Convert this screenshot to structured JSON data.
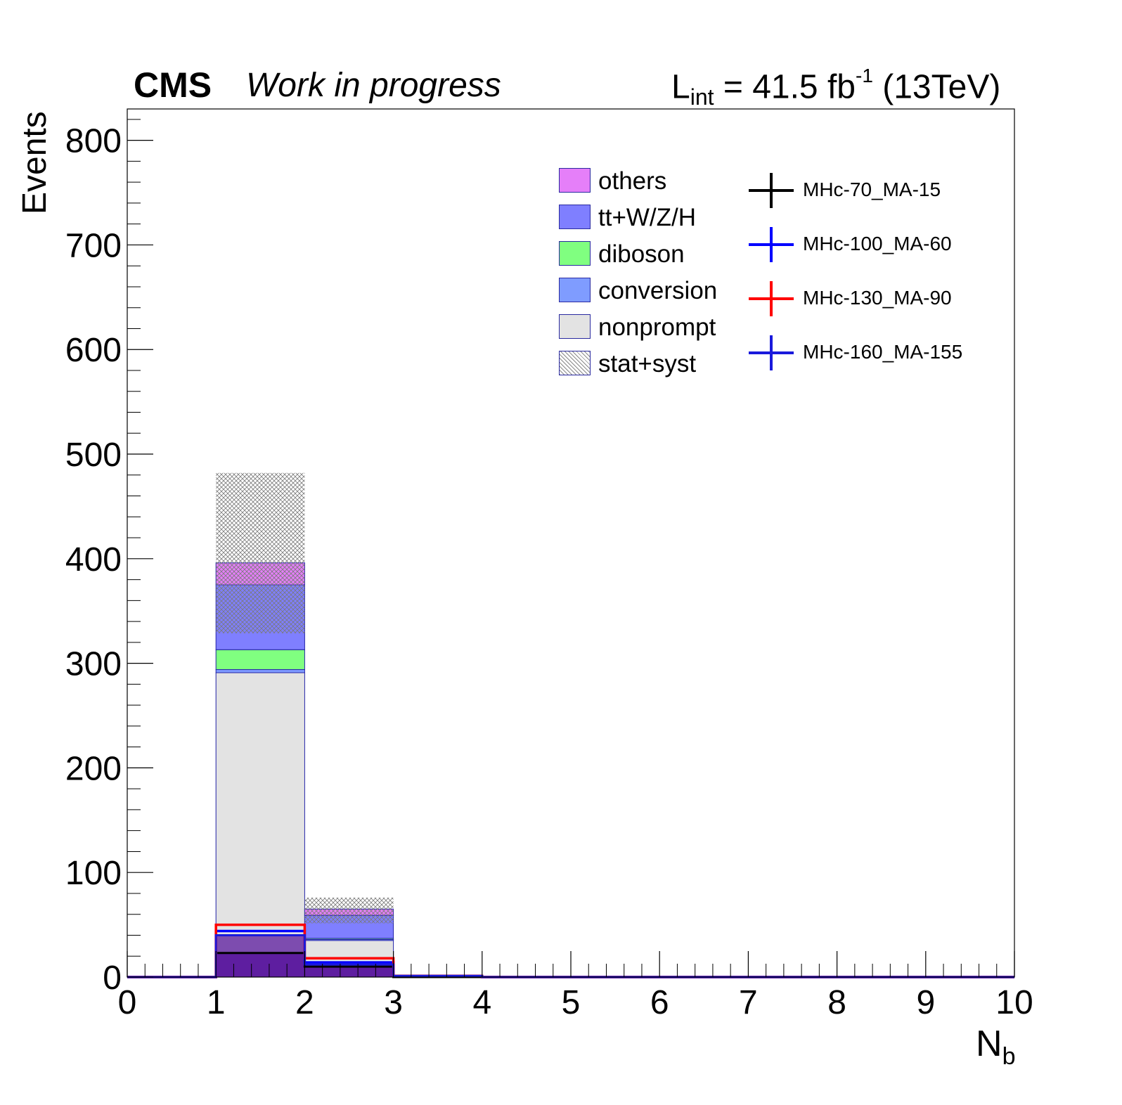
{
  "header": {
    "experiment": "CMS",
    "status": "Work in progress",
    "lumi_prefix": "L",
    "lumi_sub": "int",
    "lumi_value": " = 41.5 fb",
    "lumi_sup": "-1",
    "lumi_energy": " (13TeV)"
  },
  "chart_data": {
    "type": "bar",
    "subtype": "stacked-histogram",
    "xlabel_main": "N",
    "xlabel_sub": "b",
    "ylabel": "Events",
    "xlim": [
      0,
      10
    ],
    "ylim": [
      0,
      830
    ],
    "x_ticks": [
      "0",
      "1",
      "2",
      "3",
      "4",
      "5",
      "6",
      "7",
      "8",
      "9",
      "10"
    ],
    "y_ticks": [
      "0",
      "100",
      "200",
      "300",
      "400",
      "500",
      "600",
      "700",
      "800"
    ],
    "bin_edges": [
      0,
      1,
      2,
      3,
      4,
      5,
      6,
      7,
      8,
      9,
      10
    ],
    "grid": false,
    "legend_position": "top-right",
    "stack_order": [
      "nonprompt",
      "conversion",
      "diboson",
      "tt+W/Z/H",
      "others"
    ],
    "series": [
      {
        "name": "nonprompt",
        "color": "#e3e3e3",
        "values": [
          0,
          291,
          35,
          1.5,
          0,
          0,
          0,
          0,
          0,
          0
        ]
      },
      {
        "name": "conversion",
        "color": "#7f9cff",
        "values": [
          0,
          3,
          1,
          0,
          0,
          0,
          0,
          0,
          0,
          0
        ]
      },
      {
        "name": "diboson",
        "color": "#80ff80",
        "values": [
          0,
          19,
          1,
          0,
          0,
          0,
          0,
          0,
          0,
          0
        ]
      },
      {
        "name": "tt+W/Z/H",
        "color": "#7f7fff",
        "values": [
          0,
          62,
          22,
          0.5,
          0,
          0,
          0,
          0,
          0,
          0
        ]
      },
      {
        "name": "others",
        "color": "#e57ff9",
        "values": [
          0,
          21,
          6,
          0,
          0,
          0,
          0,
          0,
          0,
          0
        ]
      }
    ],
    "uncertainty": {
      "name": "stat+syst",
      "lower": [
        0,
        396,
        62,
        2,
        0,
        0,
        0,
        0,
        0,
        0
      ],
      "upper": [
        0,
        482,
        76,
        2,
        0,
        0,
        0,
        0,
        0,
        0
      ]
    },
    "signals": [
      {
        "name": "MHc-70_MA-15",
        "color": "#000000",
        "values": [
          0,
          23,
          10,
          0,
          0,
          0,
          0,
          0,
          0,
          0
        ]
      },
      {
        "name": "MHc-100_MA-60",
        "color": "#0000ff",
        "values": [
          0,
          44,
          14,
          1,
          0,
          0,
          0,
          0,
          0,
          0
        ]
      },
      {
        "name": "MHc-130_MA-90",
        "color": "#ff0000",
        "values": [
          0,
          50,
          18,
          1,
          0,
          0,
          0,
          0,
          0,
          0
        ]
      },
      {
        "name": "MHc-160_MA-155",
        "color": "#1a1adc",
        "values": [
          0,
          40,
          12,
          1,
          0,
          0,
          0,
          0,
          0,
          0
        ]
      }
    ],
    "signal_fill_color": "#5b1a9e"
  },
  "legend": {
    "background": [
      {
        "label": "others",
        "color": "#e57ff9"
      },
      {
        "label": "tt+W/Z/H",
        "color": "#7f7fff"
      },
      {
        "label": "diboson",
        "color": "#80ff80"
      },
      {
        "label": "conversion",
        "color": "#7f9cff"
      },
      {
        "label": "nonprompt",
        "color": "#e3e3e3"
      },
      {
        "label": "stat+syst",
        "color": "hatched"
      }
    ],
    "signals": [
      {
        "label": "MHc-70_MA-15",
        "color": "#000000"
      },
      {
        "label": "MHc-100_MA-60",
        "color": "#0000ff"
      },
      {
        "label": "MHc-130_MA-90",
        "color": "#ff0000"
      },
      {
        "label": "MHc-160_MA-155",
        "color": "#1a1adc"
      }
    ]
  }
}
